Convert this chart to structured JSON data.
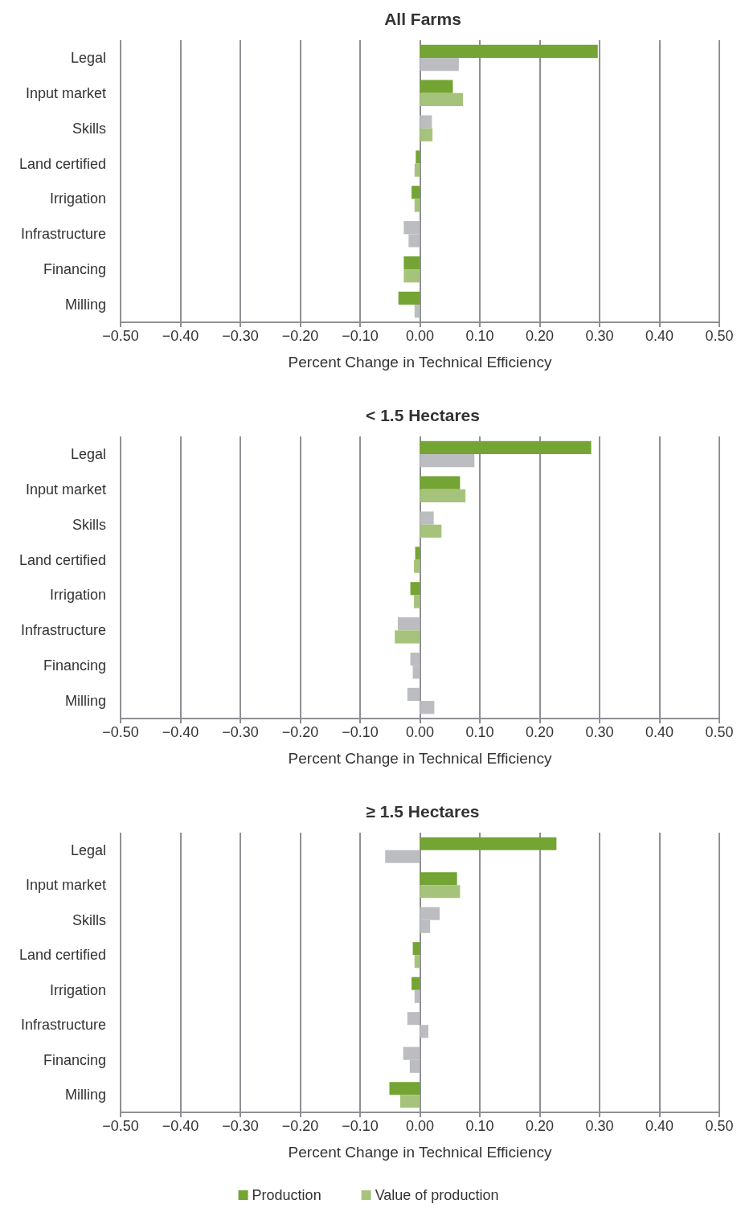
{
  "chart_data": [
    {
      "type": "bar",
      "orientation": "horizontal",
      "title": "All Farms",
      "xlabel": "Percent Change in Technical Efficiency",
      "categories": [
        "Legal",
        "Input market",
        "Skills",
        "Land certified",
        "Irrigation",
        "Infrastructure",
        "Financing",
        "Milling"
      ],
      "xlim": [
        -0.5,
        0.5
      ],
      "xticks": [
        {
          "value": -0.5,
          "label": "−0.50"
        },
        {
          "value": -0.4,
          "label": "−0.40"
        },
        {
          "value": -0.3,
          "label": "−0.30"
        },
        {
          "value": -0.2,
          "label": "−0.20"
        },
        {
          "value": -0.1,
          "label": "−0.10"
        },
        {
          "value": 0,
          "label": "0.00"
        },
        {
          "value": 0.1,
          "label": "0.10"
        },
        {
          "value": 0.2,
          "label": "0.20"
        },
        {
          "value": 0.3,
          "label": "0.30"
        },
        {
          "value": 0.4,
          "label": "0.40"
        },
        {
          "value": 0.5,
          "label": "0.50"
        }
      ],
      "grid": "x",
      "legend": false,
      "series": [
        {
          "color": "#74a433",
          "values": [
            0.297,
            0.055,
            0.02,
            -0.007,
            -0.014,
            -0.027,
            -0.027,
            -0.036
          ],
          "colors": [
            "#74a433",
            "#74a433",
            "#bcbdc1",
            "#74a433",
            "#74a433",
            "#bcbdc1",
            "#74a433",
            "#74a433"
          ]
        },
        {
          "color": "#a6c37c",
          "values": [
            0.065,
            0.072,
            0.021,
            -0.009,
            -0.009,
            -0.019,
            -0.027,
            -0.009
          ],
          "colors": [
            "#bcbdc1",
            "#a6c37c",
            "#a6c37c",
            "#a6c37c",
            "#a6c37c",
            "#bcbdc1",
            "#a6c37c",
            "#bcbdc1"
          ]
        }
      ]
    },
    {
      "type": "bar",
      "orientation": "horizontal",
      "title": "< 1.5 Hectares",
      "xlabel": "Percent Change in Technical Efficiency",
      "categories": [
        "Legal",
        "Input market",
        "Skills",
        "Land certified",
        "Irrigation",
        "Infrastructure",
        "Financing",
        "Milling"
      ],
      "xlim": [
        -0.5,
        0.5
      ],
      "xticks": [
        {
          "value": -0.5,
          "label": "−0.50"
        },
        {
          "value": -0.4,
          "label": "−0.40"
        },
        {
          "value": -0.3,
          "label": "−0.30"
        },
        {
          "value": -0.2,
          "label": "−0.20"
        },
        {
          "value": -0.1,
          "label": "−0.10"
        },
        {
          "value": 0,
          "label": "0.00"
        },
        {
          "value": 0.1,
          "label": "0.10"
        },
        {
          "value": 0.2,
          "label": "0.20"
        },
        {
          "value": 0.3,
          "label": "0.30"
        },
        {
          "value": 0.4,
          "label": "0.40"
        },
        {
          "value": 0.5,
          "label": "0.50"
        }
      ],
      "grid": "x",
      "legend": false,
      "series": [
        {
          "color": "#74a433",
          "values": [
            0.286,
            0.067,
            0.023,
            -0.008,
            -0.016,
            -0.037,
            -0.016,
            -0.021
          ],
          "colors": [
            "#74a433",
            "#74a433",
            "#bcbdc1",
            "#74a433",
            "#74a433",
            "#bcbdc1",
            "#bcbdc1",
            "#bcbdc1"
          ]
        },
        {
          "color": "#a6c37c",
          "values": [
            0.091,
            0.076,
            0.036,
            -0.01,
            -0.01,
            -0.042,
            -0.012,
            0.024
          ],
          "colors": [
            "#bcbdc1",
            "#a6c37c",
            "#a6c37c",
            "#a6c37c",
            "#a6c37c",
            "#a6c37c",
            "#bcbdc1",
            "#bcbdc1"
          ]
        }
      ]
    },
    {
      "type": "bar",
      "orientation": "horizontal",
      "title": "≥ 1.5 Hectares",
      "xlabel": "Percent Change in Technical Efficiency",
      "categories": [
        "Legal",
        "Input market",
        "Skills",
        "Land certified",
        "Irrigation",
        "Infrastructure",
        "Financing",
        "Milling"
      ],
      "xlim": [
        -0.5,
        0.5
      ],
      "xticks": [
        {
          "value": -0.5,
          "label": "−0.50"
        },
        {
          "value": -0.4,
          "label": "−0.40"
        },
        {
          "value": -0.3,
          "label": "−0.30"
        },
        {
          "value": -0.2,
          "label": "−0.20"
        },
        {
          "value": -0.1,
          "label": "−0.10"
        },
        {
          "value": 0,
          "label": "0.00"
        },
        {
          "value": 0.1,
          "label": "0.10"
        },
        {
          "value": 0.2,
          "label": "0.20"
        },
        {
          "value": 0.3,
          "label": "0.30"
        },
        {
          "value": 0.4,
          "label": "0.40"
        },
        {
          "value": 0.5,
          "label": "0.50"
        }
      ],
      "grid": "x",
      "legend": "bottom",
      "series": [
        {
          "name": "Production",
          "color": "#74a433",
          "values": [
            0.228,
            0.062,
            0.033,
            -0.012,
            -0.014,
            -0.021,
            -0.028,
            -0.051
          ],
          "colors": [
            "#74a433",
            "#74a433",
            "#bcbdc1",
            "#74a433",
            "#74a433",
            "#bcbdc1",
            "#bcbdc1",
            "#74a433"
          ]
        },
        {
          "name": "Value of production",
          "color": "#a6c37c",
          "values": [
            -0.058,
            0.067,
            0.017,
            -0.009,
            -0.009,
            0.014,
            -0.017,
            -0.033
          ],
          "colors": [
            "#bcbdc1",
            "#a6c37c",
            "#bcbdc1",
            "#a6c37c",
            "#bcbdc1",
            "#bcbdc1",
            "#bcbdc1",
            "#a6c37c"
          ]
        }
      ]
    }
  ]
}
